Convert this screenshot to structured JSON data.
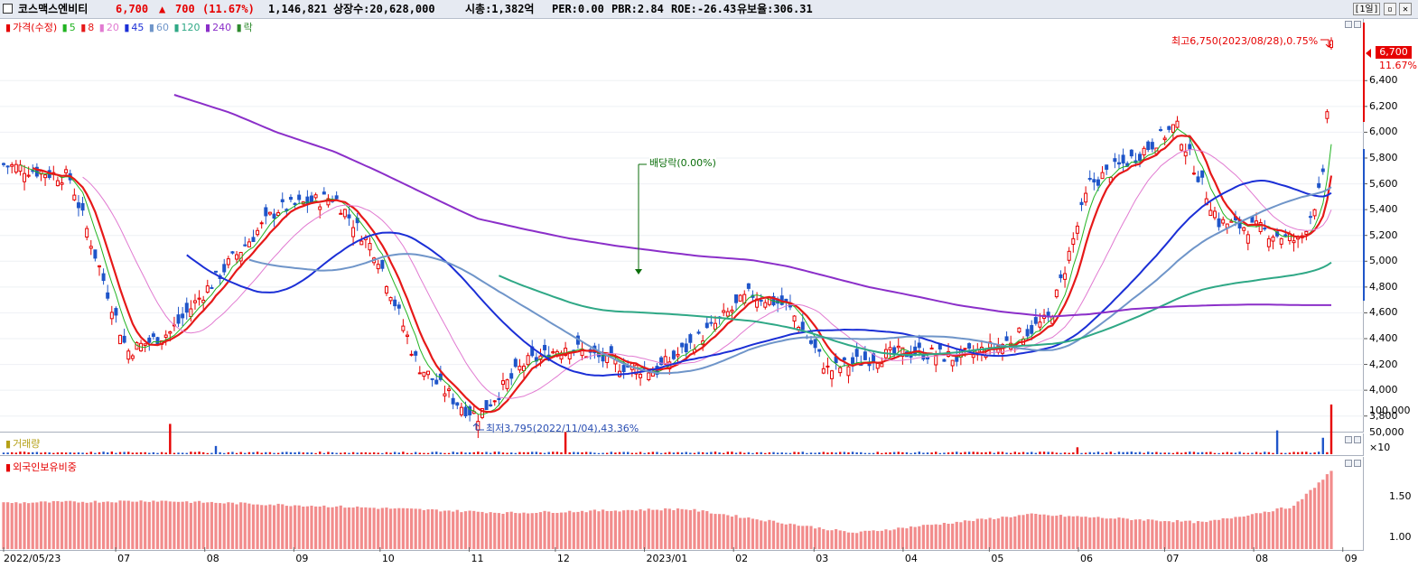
{
  "header": {
    "stock_name": "코스맥스엔비티",
    "price": "6,700",
    "change_arrow": "▲",
    "change": "700",
    "change_pct": "(11.67%)",
    "volume": "1,146,821",
    "shares": "상장수:20,628,000",
    "market_cap": "시총:1,382억",
    "per": "PER:0.00",
    "pbr": "PBR:2.84",
    "roe": "ROE:-26.43",
    "float_ratio": "유보율:306.31",
    "period_button": "[1일]",
    "restore_icon": "restore-icon",
    "close_icon": "close-icon"
  },
  "colors": {
    "up": "#e60000",
    "down": "#1f55c9",
    "ma5": "#21b321",
    "ma8": "#e61919",
    "ma20": "#e17ad1",
    "ma45": "#1b2fd6",
    "ma60": "#6f95c9",
    "ma120": "#2fa886",
    "ma240": "#8b2fc9",
    "bar_foreign": "#f28c8c"
  },
  "price_panel": {
    "legend": {
      "price": "가격(수정)",
      "ma5": "5",
      "ma8": "8",
      "ma20": "20",
      "ma45": "45",
      "ma60": "60",
      "ma120": "120",
      "ma240": "240",
      "ex": "락"
    },
    "high_note": "최고6,750(2023/08/28),0.75%",
    "low_note": "최저3,795(2022/11/04),43.36%",
    "dividend_note": "배당락(0.00%)",
    "current_tag": "6,700",
    "current_pct": "11.67%",
    "yticks": [
      "6,400",
      "6,200",
      "6,000",
      "5,800",
      "5,600",
      "5,400",
      "5,200",
      "5,000",
      "4,800",
      "4,600",
      "4,400",
      "4,200",
      "4,000",
      "3,800"
    ]
  },
  "volume_panel": {
    "title": "거래량",
    "yticks": [
      "100,000",
      "50,000"
    ],
    "unit": "×10"
  },
  "foreign_panel": {
    "title": "외국인보유비중",
    "yticks": [
      "1.50",
      "1.00"
    ]
  },
  "x_labels": [
    "2022/05/23",
    "07",
    "08",
    "09",
    "10",
    "11",
    "12",
    "2023/01",
    "02",
    "03",
    "04",
    "05",
    "06",
    "07",
    "08",
    "09"
  ],
  "chart_data": [
    {
      "type": "line",
      "title": "코스맥스엔비티 가격(수정)",
      "xlabel": "",
      "ylabel": "",
      "ylim": [
        3700,
        6850
      ],
      "x": [
        "2022/05/23",
        "2022/06/15",
        "2022/07/05",
        "2022/07/20",
        "2022/08/10",
        "2022/08/26",
        "2022/09/15",
        "2022/09/30",
        "2022/10/14",
        "2022/10/28",
        "2022/11/04",
        "2022/11/20",
        "2022/12/05",
        "2022/12/22",
        "2023/01/05",
        "2023/01/20",
        "2023/02/07",
        "2023/02/20",
        "2023/03/06",
        "2023/03/20",
        "2023/04/05",
        "2023/04/20",
        "2023/05/05",
        "2023/05/22",
        "2023/06/05",
        "2023/06/20",
        "2023/07/05",
        "2023/07/20",
        "2023/08/03",
        "2023/08/17",
        "2023/08/25",
        "2023/08/28"
      ],
      "series": [
        {
          "name": "가격(수정)",
          "values": [
            5750,
            5650,
            4300,
            4450,
            5000,
            5400,
            5500,
            5050,
            4200,
            3900,
            3800,
            4200,
            4350,
            4200,
            4150,
            4400,
            4750,
            4650,
            4150,
            4250,
            4300,
            4250,
            4350,
            4550,
            5600,
            5800,
            6050,
            5300,
            5250,
            5150,
            5600,
            6700
          ]
        },
        {
          "name": "240",
          "values": [
            null,
            null,
            null,
            6300,
            6150,
            6000,
            5850,
            5700,
            5550,
            5400,
            5330,
            5250,
            5180,
            5120,
            5080,
            5040,
            5010,
            4960,
            4880,
            4800,
            4730,
            4660,
            4610,
            4570,
            4590,
            4630,
            4650,
            4660,
            4665,
            4660,
            4660,
            4660
          ]
        }
      ],
      "annotations": [
        "최고6,750(2023/08/28),0.75%",
        "최저3,795(2022/11/04),43.36%",
        "배당락(0.00%)"
      ]
    },
    {
      "type": "bar",
      "title": "거래량",
      "ylim": [
        0,
        125000
      ],
      "categories": [
        "2022/07/20",
        "2022/08/05",
        "2022/12/05",
        "2023/06/01",
        "2023/08/09",
        "2023/08/25",
        "2023/08/28"
      ],
      "values": [
        70000,
        19000,
        51000,
        16000,
        55000,
        38000,
        114682
      ]
    },
    {
      "type": "bar",
      "title": "외국인보유비중",
      "ylim": [
        0.85,
        1.95
      ],
      "categories": [
        "2022/05",
        "2022/07",
        "2022/09",
        "2022/11",
        "2023/01",
        "2023/03",
        "2023/05",
        "2023/07",
        "2023/08",
        "2023/08/28"
      ],
      "values": [
        1.42,
        1.45,
        1.38,
        1.3,
        1.35,
        1.05,
        1.28,
        1.18,
        1.38,
        1.82
      ]
    }
  ]
}
